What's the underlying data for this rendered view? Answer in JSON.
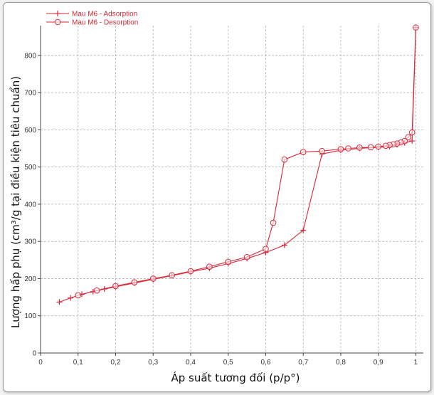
{
  "chart_data": {
    "type": "line",
    "title": "",
    "xlabel": "Áp suất tương đối (p/p°)",
    "ylabel": "Lượng hấp phụ (cm³/g tại điều kiện tiêu chuẩn)",
    "xlim": [
      0,
      1.02
    ],
    "ylim": [
      0,
      880
    ],
    "grid": true,
    "legend_position": "top-left",
    "x_ticks": [
      0,
      0.1,
      0.2,
      0.3,
      0.4,
      0.5,
      0.6,
      0.7,
      0.8,
      0.9,
      1.0
    ],
    "x_tick_labels": [
      "0",
      "0,1",
      "0,2",
      "0,3",
      "0,4",
      "0,5",
      "0,6",
      "0,7",
      "0,8",
      "0,9",
      "1"
    ],
    "y_ticks": [
      0,
      100,
      200,
      300,
      400,
      500,
      600,
      700,
      800
    ],
    "y_tick_labels": [
      "0",
      "100",
      "200",
      "300",
      "400",
      "500",
      "600",
      "700",
      "800"
    ],
    "series": [
      {
        "name": "Mau M6 - Adsorption",
        "marker": "plus",
        "color": "#d8283a",
        "x": [
          0.05,
          0.08,
          0.11,
          0.14,
          0.17,
          0.2,
          0.25,
          0.3,
          0.35,
          0.4,
          0.45,
          0.5,
          0.55,
          0.6,
          0.65,
          0.7,
          0.75,
          0.8,
          0.85,
          0.9,
          0.93,
          0.95,
          0.97,
          0.99,
          1.0
        ],
        "y": [
          137,
          148,
          158,
          165,
          172,
          178,
          188,
          198,
          208,
          218,
          228,
          240,
          254,
          270,
          290,
          330,
          535,
          545,
          550,
          553,
          555,
          560,
          565,
          570,
          875
        ]
      },
      {
        "name": "Mau M6 - Desorption",
        "marker": "circle",
        "color": "#d8283a",
        "x": [
          1.0,
          0.99,
          0.98,
          0.97,
          0.96,
          0.95,
          0.94,
          0.93,
          0.92,
          0.9,
          0.88,
          0.85,
          0.82,
          0.8,
          0.75,
          0.7,
          0.65,
          0.62,
          0.6,
          0.55,
          0.5,
          0.45,
          0.4,
          0.35,
          0.3,
          0.25,
          0.2,
          0.15,
          0.1
        ],
        "y": [
          875,
          593,
          580,
          570,
          566,
          563,
          561,
          559,
          557,
          555,
          553,
          552,
          550,
          548,
          543,
          540,
          520,
          350,
          280,
          258,
          245,
          232,
          220,
          209,
          200,
          190,
          180,
          168,
          155
        ]
      }
    ]
  }
}
